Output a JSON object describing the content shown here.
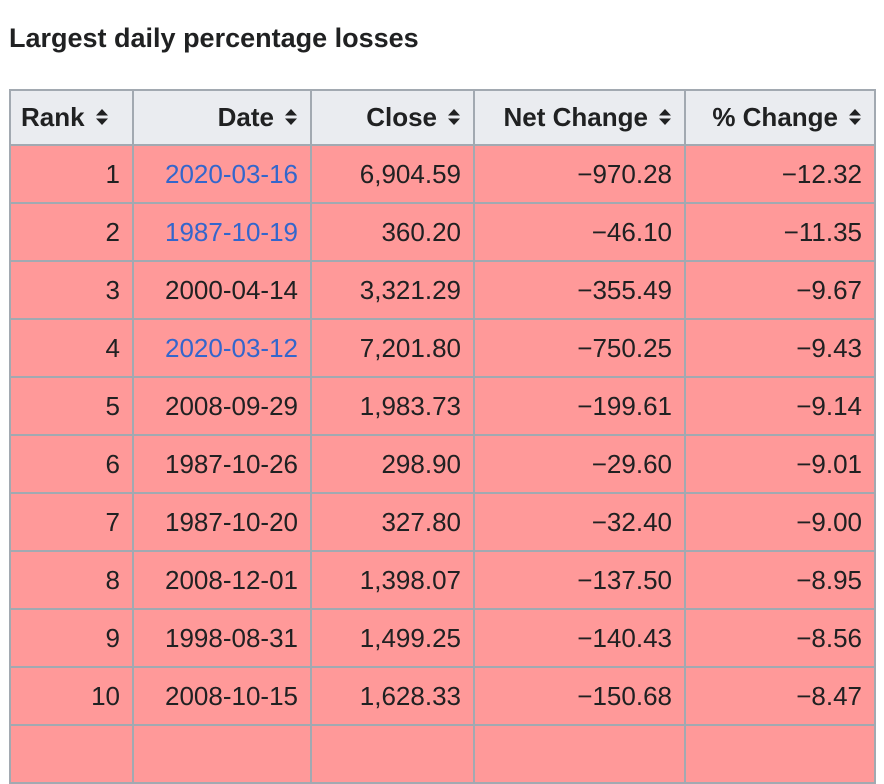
{
  "page": {
    "heading": "Largest daily percentage losses"
  },
  "table": {
    "headers": {
      "rank": "Rank",
      "date": "Date",
      "close": "Close",
      "net_change": "Net Change",
      "pct_change": "% Change"
    },
    "sort_icon": "sort-updown-icon",
    "colors": {
      "row_background": "#ff9999",
      "header_background": "#eaecf0",
      "border": "#a2a9b1",
      "link": "#3366cc"
    },
    "rows": [
      {
        "rank": "1",
        "date": "2020-03-16",
        "date_is_link": true,
        "close": "6,904.59",
        "net_change": "−970.28",
        "pct_change": "−12.32"
      },
      {
        "rank": "2",
        "date": "1987-10-19",
        "date_is_link": true,
        "close": "360.20",
        "net_change": "−46.10",
        "pct_change": "−11.35"
      },
      {
        "rank": "3",
        "date": "2000-04-14",
        "date_is_link": false,
        "close": "3,321.29",
        "net_change": "−355.49",
        "pct_change": "−9.67"
      },
      {
        "rank": "4",
        "date": "2020-03-12",
        "date_is_link": true,
        "close": "7,201.80",
        "net_change": "−750.25",
        "pct_change": "−9.43"
      },
      {
        "rank": "5",
        "date": "2008-09-29",
        "date_is_link": false,
        "close": "1,983.73",
        "net_change": "−199.61",
        "pct_change": "−9.14"
      },
      {
        "rank": "6",
        "date": "1987-10-26",
        "date_is_link": false,
        "close": "298.90",
        "net_change": "−29.60",
        "pct_change": "−9.01"
      },
      {
        "rank": "7",
        "date": "1987-10-20",
        "date_is_link": false,
        "close": "327.80",
        "net_change": "−32.40",
        "pct_change": "−9.00"
      },
      {
        "rank": "8",
        "date": "2008-12-01",
        "date_is_link": false,
        "close": "1,398.07",
        "net_change": "−137.50",
        "pct_change": "−8.95"
      },
      {
        "rank": "9",
        "date": "1998-08-31",
        "date_is_link": false,
        "close": "1,499.25",
        "net_change": "−140.43",
        "pct_change": "−8.56"
      },
      {
        "rank": "10",
        "date": "2008-10-15",
        "date_is_link": false,
        "close": "1,628.33",
        "net_change": "−150.68",
        "pct_change": "−8.47"
      },
      {
        "rank": "",
        "date": "",
        "date_is_link": false,
        "close": "",
        "net_change": "",
        "pct_change": ""
      }
    ]
  }
}
